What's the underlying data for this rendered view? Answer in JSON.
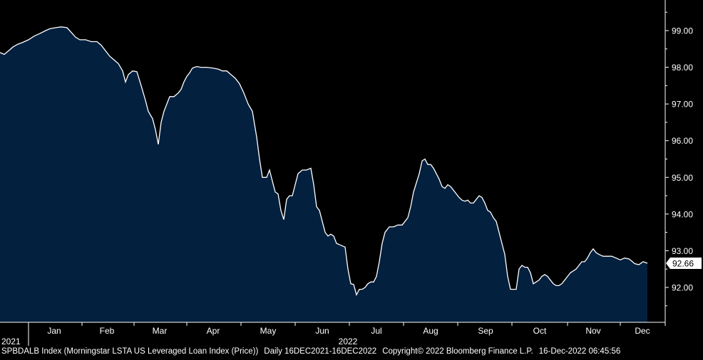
{
  "chart_data": {
    "type": "area",
    "x_month_labels": [
      "Jan",
      "Feb",
      "Mar",
      "Apr",
      "May",
      "Jun",
      "Jul",
      "Aug",
      "Sep",
      "Oct",
      "Nov",
      "Dec"
    ],
    "year_labels": [
      "2021",
      "2022"
    ],
    "ylim": [
      91.0,
      100.0
    ],
    "y_ticks": [
      "99.00",
      "98.00",
      "97.00",
      "96.00",
      "95.00",
      "94.00",
      "93.00",
      "92.00"
    ],
    "last_value_label": "92.66",
    "colors": {
      "fill": "#04203f",
      "line": "#ffffff",
      "background": "#000000",
      "axis": "#ffffff",
      "badge": "#ffffff",
      "badge_text": "#000000"
    },
    "series": [
      {
        "values": [
          [
            0,
            98.4
          ],
          [
            6,
            98.35
          ],
          [
            12,
            98.45
          ],
          [
            18,
            98.55
          ],
          [
            24,
            98.62
          ],
          [
            32,
            98.68
          ],
          [
            40,
            98.75
          ],
          [
            48,
            98.85
          ],
          [
            56,
            98.92
          ],
          [
            64,
            99.0
          ],
          [
            70,
            99.05
          ],
          [
            78,
            99.08
          ],
          [
            86,
            99.1
          ],
          [
            94,
            99.08
          ],
          [
            100,
            98.95
          ],
          [
            106,
            98.82
          ],
          [
            112,
            98.75
          ],
          [
            120,
            98.75
          ],
          [
            128,
            98.7
          ],
          [
            136,
            98.7
          ],
          [
            142,
            98.6
          ],
          [
            148,
            98.45
          ],
          [
            154,
            98.3
          ],
          [
            160,
            98.2
          ],
          [
            166,
            98.1
          ],
          [
            172,
            97.9
          ],
          [
            176,
            97.6
          ],
          [
            180,
            97.8
          ],
          [
            186,
            97.9
          ],
          [
            192,
            97.88
          ],
          [
            198,
            97.5
          ],
          [
            204,
            97.1
          ],
          [
            208,
            96.8
          ],
          [
            214,
            96.6
          ],
          [
            218,
            96.3
          ],
          [
            222,
            95.9
          ],
          [
            226,
            96.5
          ],
          [
            230,
            96.8
          ],
          [
            234,
            97.0
          ],
          [
            238,
            97.2
          ],
          [
            244,
            97.2
          ],
          [
            250,
            97.3
          ],
          [
            254,
            97.4
          ],
          [
            258,
            97.6
          ],
          [
            262,
            97.75
          ],
          [
            266,
            97.85
          ],
          [
            270,
            97.98
          ],
          [
            276,
            98.02
          ],
          [
            282,
            98.0
          ],
          [
            290,
            98.0
          ],
          [
            298,
            97.98
          ],
          [
            306,
            97.95
          ],
          [
            312,
            97.9
          ],
          [
            318,
            97.9
          ],
          [
            324,
            97.8
          ],
          [
            330,
            97.7
          ],
          [
            336,
            97.55
          ],
          [
            342,
            97.3
          ],
          [
            348,
            97.0
          ],
          [
            354,
            96.8
          ],
          [
            360,
            96.1
          ],
          [
            364,
            95.5
          ],
          [
            368,
            95.0
          ],
          [
            374,
            95.0
          ],
          [
            378,
            95.2
          ],
          [
            382,
            94.9
          ],
          [
            386,
            94.6
          ],
          [
            390,
            94.55
          ],
          [
            394,
            94.1
          ],
          [
            398,
            93.85
          ],
          [
            402,
            94.4
          ],
          [
            406,
            94.5
          ],
          [
            410,
            94.5
          ],
          [
            414,
            94.8
          ],
          [
            418,
            95.1
          ],
          [
            424,
            95.2
          ],
          [
            430,
            95.2
          ],
          [
            436,
            95.25
          ],
          [
            440,
            94.8
          ],
          [
            444,
            94.2
          ],
          [
            448,
            94.1
          ],
          [
            452,
            93.8
          ],
          [
            456,
            93.5
          ],
          [
            460,
            93.4
          ],
          [
            464,
            93.45
          ],
          [
            468,
            93.4
          ],
          [
            472,
            93.2
          ],
          [
            478,
            93.15
          ],
          [
            484,
            93.1
          ],
          [
            488,
            92.5
          ],
          [
            492,
            92.1
          ],
          [
            496,
            92.08
          ],
          [
            500,
            91.8
          ],
          [
            504,
            91.95
          ],
          [
            508,
            91.95
          ],
          [
            512,
            92.0
          ],
          [
            516,
            92.1
          ],
          [
            520,
            92.15
          ],
          [
            524,
            92.15
          ],
          [
            528,
            92.3
          ],
          [
            532,
            92.7
          ],
          [
            536,
            93.2
          ],
          [
            540,
            93.5
          ],
          [
            546,
            93.65
          ],
          [
            552,
            93.65
          ],
          [
            558,
            93.7
          ],
          [
            564,
            93.7
          ],
          [
            568,
            93.8
          ],
          [
            572,
            93.9
          ],
          [
            576,
            94.2
          ],
          [
            580,
            94.6
          ],
          [
            584,
            94.85
          ],
          [
            588,
            95.1
          ],
          [
            592,
            95.45
          ],
          [
            596,
            95.5
          ],
          [
            600,
            95.35
          ],
          [
            604,
            95.35
          ],
          [
            608,
            95.25
          ],
          [
            612,
            95.1
          ],
          [
            616,
            94.95
          ],
          [
            620,
            94.75
          ],
          [
            624,
            94.7
          ],
          [
            628,
            94.8
          ],
          [
            632,
            94.75
          ],
          [
            636,
            94.65
          ],
          [
            640,
            94.55
          ],
          [
            644,
            94.45
          ],
          [
            648,
            94.38
          ],
          [
            652,
            94.35
          ],
          [
            656,
            94.38
          ],
          [
            660,
            94.3
          ],
          [
            664,
            94.3
          ],
          [
            668,
            94.4
          ],
          [
            672,
            94.5
          ],
          [
            676,
            94.45
          ],
          [
            680,
            94.3
          ],
          [
            684,
            94.1
          ],
          [
            688,
            94.05
          ],
          [
            692,
            93.9
          ],
          [
            696,
            93.8
          ],
          [
            700,
            93.5
          ],
          [
            704,
            93.2
          ],
          [
            708,
            92.9
          ],
          [
            712,
            92.3
          ],
          [
            716,
            91.95
          ],
          [
            720,
            91.95
          ],
          [
            724,
            91.95
          ],
          [
            728,
            92.5
          ],
          [
            732,
            92.6
          ],
          [
            736,
            92.55
          ],
          [
            740,
            92.55
          ],
          [
            744,
            92.4
          ],
          [
            748,
            92.1
          ],
          [
            752,
            92.15
          ],
          [
            756,
            92.2
          ],
          [
            760,
            92.3
          ],
          [
            764,
            92.35
          ],
          [
            768,
            92.3
          ],
          [
            772,
            92.2
          ],
          [
            776,
            92.1
          ],
          [
            780,
            92.05
          ],
          [
            784,
            92.05
          ],
          [
            788,
            92.1
          ],
          [
            792,
            92.2
          ],
          [
            796,
            92.3
          ],
          [
            800,
            92.4
          ],
          [
            804,
            92.45
          ],
          [
            808,
            92.5
          ],
          [
            812,
            92.6
          ],
          [
            816,
            92.7
          ],
          [
            820,
            92.7
          ],
          [
            824,
            92.8
          ],
          [
            828,
            92.95
          ],
          [
            832,
            93.05
          ],
          [
            836,
            92.95
          ],
          [
            840,
            92.9
          ],
          [
            846,
            92.85
          ],
          [
            852,
            92.85
          ],
          [
            858,
            92.85
          ],
          [
            864,
            92.8
          ],
          [
            870,
            92.75
          ],
          [
            876,
            92.8
          ],
          [
            882,
            92.78
          ],
          [
            886,
            92.72
          ],
          [
            890,
            92.65
          ],
          [
            896,
            92.62
          ],
          [
            902,
            92.7
          ],
          [
            908,
            92.66
          ]
        ]
      }
    ]
  },
  "footer": {
    "ticker": "SPBDALB Index (Morningstar LSTA US Leveraged Loan Index (Price))",
    "range": "Daily 16DEC2021-16DEC2022",
    "copyright": "Copyright© 2022 Bloomberg Finance L.P.",
    "timestamp": "16-Dec-2022 06:45:56"
  }
}
